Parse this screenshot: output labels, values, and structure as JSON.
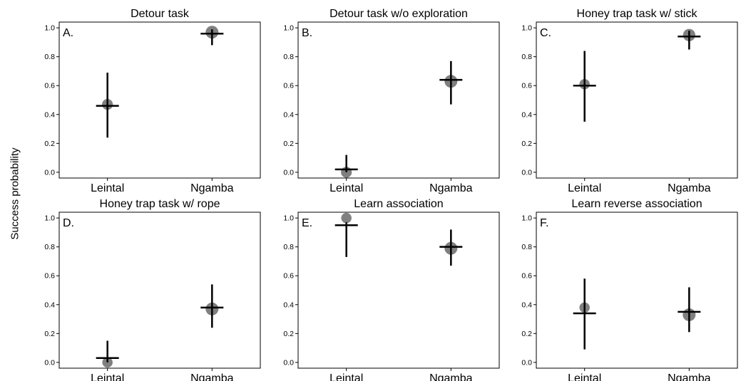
{
  "figure": {
    "shared_ylabel": "Success probability"
  },
  "chart_data": [
    {
      "type": "scatter",
      "panel_letter": "A.",
      "title": "Detour task",
      "categories": [
        "Leintal",
        "Ngamba"
      ],
      "ylim": [
        -0.04,
        1.04
      ],
      "yticks": [
        "0.0",
        "0.2",
        "0.4",
        "0.6",
        "0.8",
        "1.0"
      ],
      "observed": [
        0.47,
        0.97
      ],
      "estimate": [
        0.46,
        0.96
      ],
      "ci_lower": [
        0.24,
        0.88
      ],
      "ci_upper": [
        0.69,
        0.99
      ],
      "marker_size_rel": [
        0.6,
        1.0
      ],
      "grid": false,
      "legend": "none"
    },
    {
      "type": "scatter",
      "panel_letter": "B.",
      "title": "Detour task w/o exploration",
      "categories": [
        "Leintal",
        "Ngamba"
      ],
      "ylim": [
        -0.04,
        1.04
      ],
      "yticks": [
        "0.0",
        "0.2",
        "0.4",
        "0.6",
        "0.8",
        "1.0"
      ],
      "observed": [
        0.0,
        0.63
      ],
      "estimate": [
        0.02,
        0.64
      ],
      "ci_lower": [
        0.0,
        0.47
      ],
      "ci_upper": [
        0.12,
        0.77
      ],
      "marker_size_rel": [
        0.6,
        1.0
      ],
      "grid": false,
      "legend": "none"
    },
    {
      "type": "scatter",
      "panel_letter": "C.",
      "title": "Honey trap task w/ stick",
      "categories": [
        "Leintal",
        "Ngamba"
      ],
      "ylim": [
        -0.04,
        1.04
      ],
      "yticks": [
        "0.0",
        "0.2",
        "0.4",
        "0.6",
        "0.8",
        "1.0"
      ],
      "observed": [
        0.61,
        0.95
      ],
      "estimate": [
        0.6,
        0.94
      ],
      "ci_lower": [
        0.35,
        0.85
      ],
      "ci_upper": [
        0.84,
        0.98
      ],
      "marker_size_rel": [
        0.5,
        0.9
      ],
      "grid": false,
      "legend": "none"
    },
    {
      "type": "scatter",
      "panel_letter": "D.",
      "title": "Honey trap task w/ rope",
      "categories": [
        "Leintal",
        "Ngamba"
      ],
      "ylim": [
        -0.04,
        1.04
      ],
      "yticks": [
        "0.0",
        "0.2",
        "0.4",
        "0.6",
        "0.8",
        "1.0"
      ],
      "observed": [
        0.0,
        0.37
      ],
      "estimate": [
        0.03,
        0.38
      ],
      "ci_lower": [
        0.0,
        0.24
      ],
      "ci_upper": [
        0.15,
        0.54
      ],
      "marker_size_rel": [
        0.5,
        1.0
      ],
      "grid": false,
      "legend": "none"
    },
    {
      "type": "scatter",
      "panel_letter": "E.",
      "title": "Learn association",
      "categories": [
        "Leintal",
        "Ngamba"
      ],
      "ylim": [
        -0.04,
        1.04
      ],
      "yticks": [
        "0.0",
        "0.2",
        "0.4",
        "0.6",
        "0.8",
        "1.0"
      ],
      "observed": [
        1.0,
        0.79
      ],
      "estimate": [
        0.95,
        0.8
      ],
      "ci_lower": [
        0.73,
        0.67
      ],
      "ci_upper": [
        0.97,
        0.92
      ],
      "marker_size_rel": [
        0.5,
        1.0
      ],
      "grid": false,
      "legend": "none"
    },
    {
      "type": "scatter",
      "panel_letter": "F.",
      "title": "Learn reverse association",
      "categories": [
        "Leintal",
        "Ngamba"
      ],
      "ylim": [
        -0.04,
        1.04
      ],
      "yticks": [
        "0.0",
        "0.2",
        "0.4",
        "0.6",
        "0.8",
        "1.0"
      ],
      "observed": [
        0.38,
        0.33
      ],
      "estimate": [
        0.34,
        0.35
      ],
      "ci_lower": [
        0.09,
        0.21
      ],
      "ci_upper": [
        0.58,
        0.52
      ],
      "marker_size_rel": [
        0.5,
        1.0
      ],
      "grid": false,
      "legend": "none"
    }
  ],
  "colors": {
    "observed_point": "#808080",
    "estimate": "#000000",
    "panel_border": "#000000",
    "background": "#ffffff"
  }
}
